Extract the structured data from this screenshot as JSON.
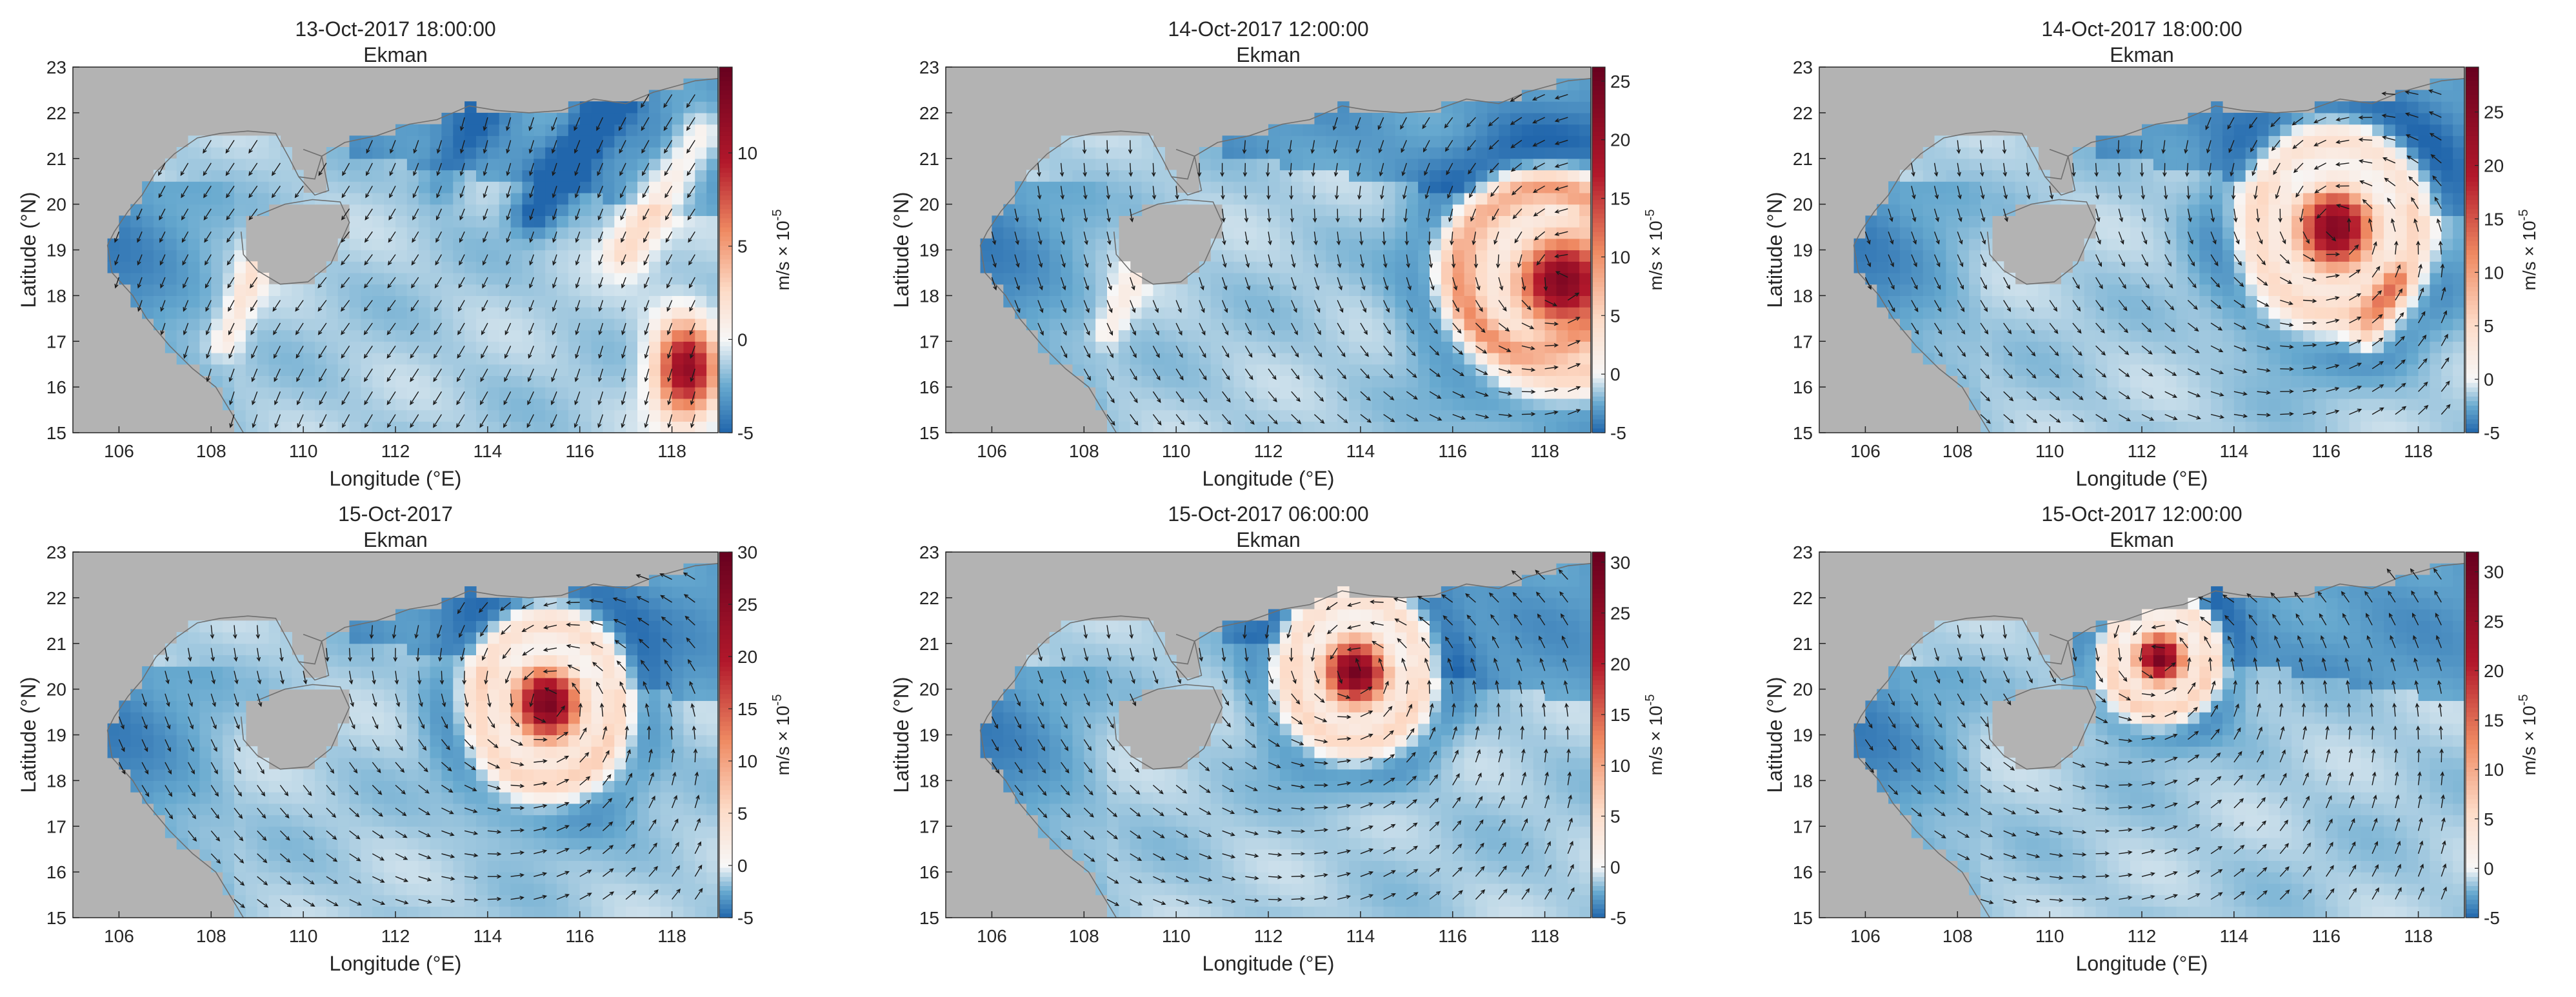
{
  "figure": {
    "xlabel": "Longitude (°E)",
    "ylabel": "Latitude (°N)",
    "colorbar_label": "m/s × 10",
    "colorbar_exponent": "-5",
    "panel_subtitle": "Ekman"
  },
  "chart_data": [
    {
      "type": "heatmap",
      "title": "13-Oct-2017 18:00:00",
      "subtitle": "Ekman",
      "xlabel": "Longitude (°E)",
      "ylabel": "Latitude (°N)",
      "xlim": [
        105,
        119
      ],
      "ylim": [
        15,
        23
      ],
      "xticks": [
        106,
        108,
        110,
        112,
        114,
        116,
        118
      ],
      "yticks": [
        15,
        16,
        17,
        18,
        19,
        20,
        21,
        22,
        23
      ],
      "colorbar": {
        "label": "m/s × 10^-5",
        "min": -5,
        "max": 14.6,
        "ticks": [
          -5,
          0,
          5,
          10
        ]
      },
      "features": [
        {
          "kind": "positive-patch",
          "lon": 118.3,
          "lat": 16.4,
          "value": 13,
          "radius_lon": 0.9,
          "radius_lat": 1.4
        },
        {
          "kind": "positive-band",
          "from": [
            117.0,
            19.0
          ],
          "to": [
            118.6,
            21.5
          ],
          "value": 4,
          "width": 0.5
        },
        {
          "kind": "positive-band",
          "from": [
            108.3,
            17.0
          ],
          "to": [
            109.2,
            19.2
          ],
          "value": 3,
          "width": 0.35
        },
        {
          "kind": "negative-band",
          "from": [
            115.0,
            19.8
          ],
          "to": [
            117.2,
            23.0
          ],
          "value": -4,
          "width": 0.5
        },
        {
          "kind": "negative-band",
          "from": [
            113.0,
            20.5
          ],
          "to": [
            114.5,
            23.0
          ],
          "value": -2,
          "width": 0.5
        }
      ],
      "wind_field": {
        "kind": "uniform",
        "direction": "southwest"
      }
    },
    {
      "type": "heatmap",
      "title": "14-Oct-2017 12:00:00",
      "subtitle": "Ekman",
      "xlabel": "Longitude (°E)",
      "ylabel": "Latitude (°N)",
      "xlim": [
        105,
        119
      ],
      "ylim": [
        15,
        23
      ],
      "xticks": [
        106,
        108,
        110,
        112,
        114,
        116,
        118
      ],
      "yticks": [
        15,
        16,
        17,
        18,
        19,
        20,
        21,
        22,
        23
      ],
      "colorbar": {
        "label": "m/s × 10^-5",
        "min": -5,
        "max": 26.2,
        "ticks": [
          -5,
          0,
          5,
          10,
          15,
          20,
          25
        ]
      },
      "features": [
        {
          "kind": "cyclone",
          "lon": 118.4,
          "lat": 18.3,
          "value": 25,
          "radius_lon": 1.3,
          "radius_lat": 1.3
        },
        {
          "kind": "ring",
          "lon": 117.8,
          "lat": 18.6,
          "value": 6,
          "radius": 1.8
        },
        {
          "kind": "positive-band",
          "from": [
            108.5,
            17.2
          ],
          "to": [
            109.3,
            18.8
          ],
          "value": 3,
          "width": 0.3
        }
      ],
      "wind_field": {
        "kind": "cyclone",
        "lon": 118.4,
        "lat": 18.3
      }
    },
    {
      "type": "heatmap",
      "title": "14-Oct-2017 18:00:00",
      "subtitle": "Ekman",
      "xlabel": "Longitude (°E)",
      "ylabel": "Latitude (°N)",
      "xlim": [
        105,
        119
      ],
      "ylim": [
        15,
        23
      ],
      "xticks": [
        106,
        108,
        110,
        112,
        114,
        116,
        118
      ],
      "yticks": [
        15,
        16,
        17,
        18,
        19,
        20,
        21,
        22,
        23
      ],
      "colorbar": {
        "label": "m/s × 10^-5",
        "min": -5,
        "max": 29.2,
        "ticks": [
          -5,
          0,
          5,
          10,
          15,
          20,
          25
        ]
      },
      "features": [
        {
          "kind": "cyclone",
          "lon": 116.2,
          "lat": 19.5,
          "value": 27,
          "radius_lon": 1.1,
          "radius_lat": 1.2
        },
        {
          "kind": "positive-band",
          "from": [
            116.9,
            17.2
          ],
          "to": [
            117.5,
            18.3
          ],
          "value": 8,
          "width": 0.35
        }
      ],
      "wind_field": {
        "kind": "cyclone",
        "lon": 116.2,
        "lat": 19.5
      }
    },
    {
      "type": "heatmap",
      "title": "15-Oct-2017",
      "subtitle": "Ekman",
      "xlabel": "Longitude (°E)",
      "ylabel": "Latitude (°N)",
      "xlim": [
        105,
        119
      ],
      "ylim": [
        15,
        23
      ],
      "xticks": [
        106,
        108,
        110,
        112,
        114,
        116,
        118
      ],
      "yticks": [
        15,
        16,
        17,
        18,
        19,
        20,
        21,
        22,
        23
      ],
      "colorbar": {
        "label": "m/s × 10^-5",
        "min": -5,
        "max": 30,
        "ticks": [
          -5,
          0,
          5,
          10,
          15,
          20,
          25,
          30
        ]
      },
      "features": [
        {
          "kind": "cyclone",
          "lon": 115.3,
          "lat": 19.7,
          "value": 29,
          "radius_lon": 0.95,
          "radius_lat": 1.1
        }
      ],
      "wind_field": {
        "kind": "cyclone",
        "lon": 115.3,
        "lat": 19.7
      }
    },
    {
      "type": "heatmap",
      "title": "15-Oct-2017 06:00:00",
      "subtitle": "Ekman",
      "xlabel": "Longitude (°E)",
      "ylabel": "Latitude (°N)",
      "xlim": [
        105,
        119
      ],
      "ylim": [
        15,
        23
      ],
      "xticks": [
        106,
        108,
        110,
        112,
        114,
        116,
        118
      ],
      "yticks": [
        15,
        16,
        17,
        18,
        19,
        20,
        21,
        22,
        23
      ],
      "colorbar": {
        "label": "m/s × 10^-5",
        "min": -5,
        "max": 31,
        "ticks": [
          -5,
          0,
          5,
          10,
          15,
          20,
          25,
          30
        ]
      },
      "features": [
        {
          "kind": "cyclone",
          "lon": 113.9,
          "lat": 20.4,
          "value": 30,
          "radius_lon": 0.9,
          "radius_lat": 1.0
        }
      ],
      "wind_field": {
        "kind": "cyclone",
        "lon": 113.9,
        "lat": 20.4
      }
    },
    {
      "type": "heatmap",
      "title": "15-Oct-2017 12:00:00",
      "subtitle": "Ekman",
      "xlabel": "Longitude (°E)",
      "ylabel": "Latitude (°N)",
      "xlim": [
        105,
        119
      ],
      "ylim": [
        15,
        23
      ],
      "xticks": [
        106,
        108,
        110,
        112,
        114,
        116,
        118
      ],
      "yticks": [
        15,
        16,
        17,
        18,
        19,
        20,
        21,
        22,
        23
      ],
      "colorbar": {
        "label": "m/s × 10^-5",
        "min": -5,
        "max": 32,
        "ticks": [
          -5,
          0,
          5,
          10,
          15,
          20,
          25,
          30
        ]
      },
      "features": [
        {
          "kind": "cyclone",
          "lon": 112.4,
          "lat": 20.7,
          "value": 31,
          "radius_lon": 0.7,
          "radius_lat": 0.75
        }
      ],
      "wind_field": {
        "kind": "cyclone",
        "lon": 112.4,
        "lat": 20.7
      }
    }
  ]
}
